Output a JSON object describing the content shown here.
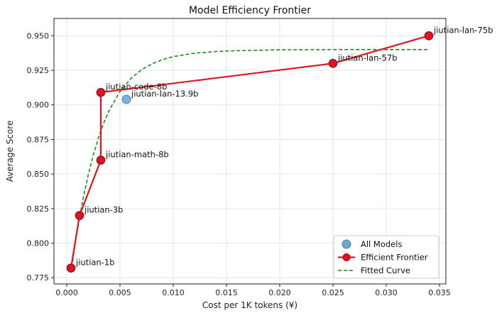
{
  "chart_data": {
    "type": "scatter",
    "title": "Model Efficiency Frontier",
    "xlabel": "Cost per 1K tokens (¥)",
    "ylabel": "Average Score",
    "xlim": [
      -0.0012,
      0.0356
    ],
    "ylim": [
      0.7705,
      0.9625
    ],
    "xticks": [
      0.0,
      0.005,
      0.01,
      0.015,
      0.02,
      0.025,
      0.03,
      0.035
    ],
    "xtick_labels": [
      "0.000",
      "0.005",
      "0.010",
      "0.015",
      "0.020",
      "0.025",
      "0.030",
      "0.035"
    ],
    "yticks": [
      0.775,
      0.8,
      0.825,
      0.85,
      0.875,
      0.9,
      0.925,
      0.95
    ],
    "ytick_labels": [
      "0.775",
      "0.800",
      "0.825",
      "0.850",
      "0.875",
      "0.900",
      "0.925",
      "0.950"
    ],
    "grid": true,
    "legend_position": "lower-right",
    "points": [
      {
        "label": "jiutian-1b",
        "x": 0.0004,
        "y": 0.782
      },
      {
        "label": "jiutian-3b",
        "x": 0.0012,
        "y": 0.82
      },
      {
        "label": "jiutian-math-8b",
        "x": 0.0032,
        "y": 0.86
      },
      {
        "label": "jiutian-code-8b",
        "x": 0.0032,
        "y": 0.909
      },
      {
        "label": "jiutian-lan-13.9b",
        "x": 0.0056,
        "y": 0.904
      },
      {
        "label": "jiutian-lan-57b",
        "x": 0.025,
        "y": 0.93
      },
      {
        "label": "jiutian-lan-75b",
        "x": 0.034,
        "y": 0.95
      }
    ],
    "frontier": [
      {
        "x": 0.0004,
        "y": 0.782
      },
      {
        "x": 0.0012,
        "y": 0.82
      },
      {
        "x": 0.0032,
        "y": 0.86
      },
      {
        "x": 0.0032,
        "y": 0.909
      },
      {
        "x": 0.025,
        "y": 0.93
      },
      {
        "x": 0.034,
        "y": 0.95
      }
    ],
    "fitted_curve": {
      "x": [
        0.0004,
        0.0008,
        0.0012,
        0.0016,
        0.002,
        0.0025,
        0.003,
        0.0035,
        0.004,
        0.005,
        0.006,
        0.007,
        0.008,
        0.009,
        0.01,
        0.012,
        0.014,
        0.016,
        0.018,
        0.02,
        0.023,
        0.026,
        0.03,
        0.034
      ],
      "y": [
        0.7786,
        0.7999,
        0.8185,
        0.8347,
        0.8487,
        0.864,
        0.8768,
        0.8874,
        0.8963,
        0.9096,
        0.9189,
        0.9253,
        0.9297,
        0.9328,
        0.9349,
        0.9374,
        0.9386,
        0.9392,
        0.9395,
        0.9398,
        0.9399,
        0.94,
        0.94,
        0.94
      ]
    },
    "legend": [
      {
        "label": "All Models",
        "kind": "scatter"
      },
      {
        "label": "Efficient Frontier",
        "kind": "line-marker"
      },
      {
        "label": "Fitted Curve",
        "kind": "dashed-line"
      }
    ],
    "colors": {
      "scatter": "#6fa8d6",
      "scatter_edge": "#4a7fae",
      "frontier": "#e0141e",
      "frontier_marker_edge": "#b00010",
      "fitted": "#1a8a1a",
      "grid": "#e6e6e6"
    }
  }
}
